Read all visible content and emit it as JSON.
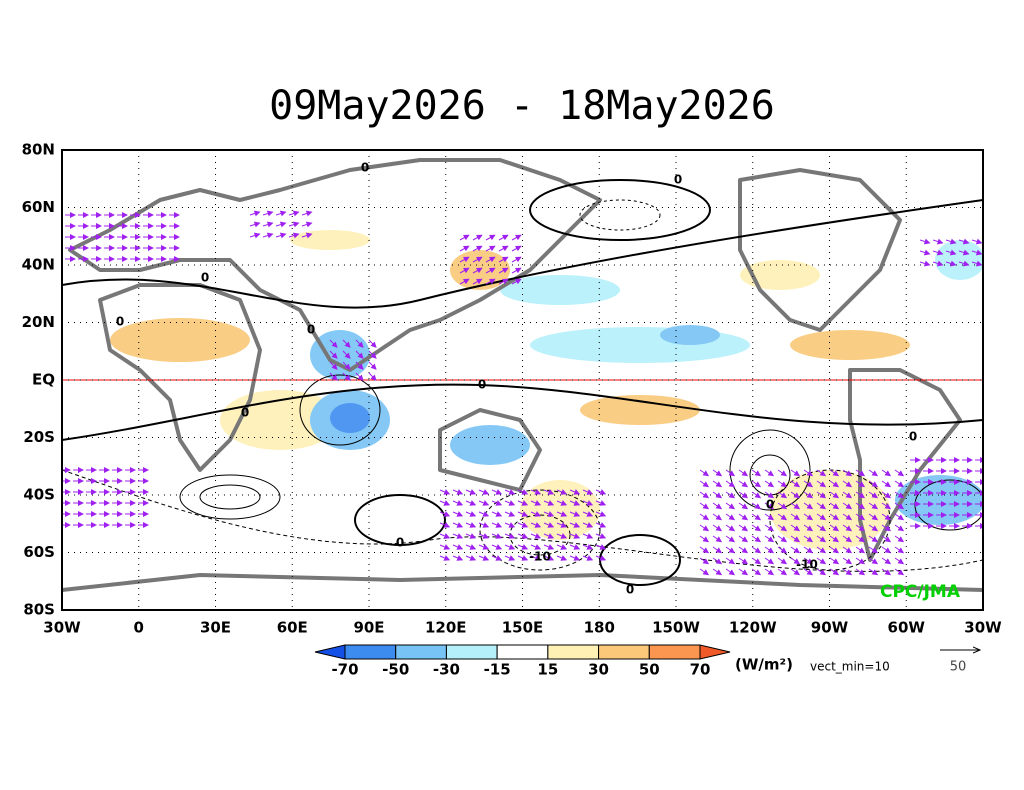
{
  "title": "09May2026 - 18May2026",
  "lat_labels": [
    "80N",
    "60N",
    "40N",
    "20N",
    "EQ",
    "20S",
    "40S",
    "60S",
    "80S"
  ],
  "lon_labels": [
    "30W",
    "0",
    "30E",
    "60E",
    "90E",
    "120E",
    "150E",
    "180",
    "150W",
    "120W",
    "90W",
    "60W",
    "30W"
  ],
  "colorbar": {
    "labels": [
      "-70",
      "-50",
      "-30",
      "-15",
      "15",
      "30",
      "50",
      "70"
    ],
    "colors": [
      "#1450e6",
      "#3c8cf0",
      "#78c3f5",
      "#b4f0fa",
      "#ffffff",
      "#fff0b4",
      "#fac878",
      "#fa9650",
      "#f05a28"
    ]
  },
  "units": "(W/m²)",
  "vector_note": "vect_min=10",
  "reference_vector": "50",
  "credit": "CPC/JMA",
  "contour_labels": [
    "0",
    "0",
    "0",
    "0",
    "0",
    "0",
    "0",
    "0",
    "0",
    "0",
    "-10",
    "-10",
    "0"
  ]
}
